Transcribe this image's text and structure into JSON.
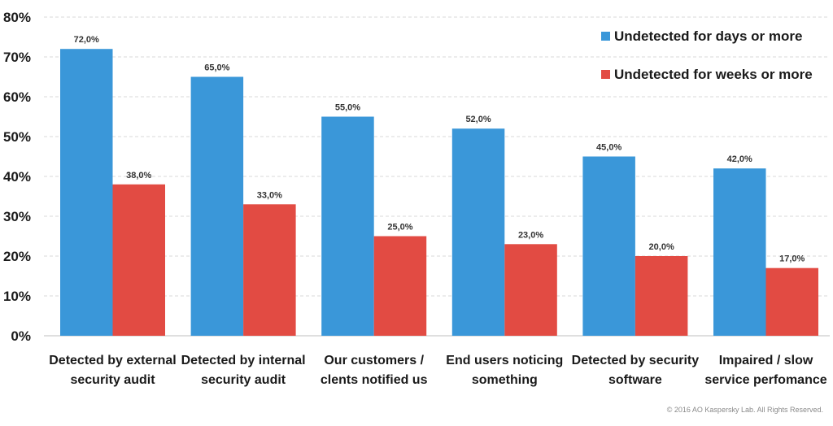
{
  "chart_data": {
    "type": "bar",
    "categories": [
      [
        "Detected by external",
        "security audit"
      ],
      [
        "Detected by internal",
        "security audit"
      ],
      [
        "Our customers /",
        "clents notified us"
      ],
      [
        "End users noticing",
        "something"
      ],
      [
        "Detected by security",
        "software"
      ],
      [
        "Impaired / slow",
        "service perfomance"
      ]
    ],
    "series": [
      {
        "name": "Undetected for days or more",
        "color": "#3a97d9",
        "values": [
          72,
          65,
          55,
          52,
          45,
          42
        ],
        "labels": [
          "72,0%",
          "65,0%",
          "55,0%",
          "52,0%",
          "45,0%",
          "42,0%"
        ]
      },
      {
        "name": "Undetected for weeks or more",
        "color": "#e24b43",
        "values": [
          38,
          33,
          25,
          23,
          20,
          17
        ],
        "labels": [
          "38,0%",
          "33,0%",
          "25,0%",
          "23,0%",
          "20,0%",
          "17,0%"
        ]
      }
    ],
    "yticks": [
      0,
      10,
      20,
      30,
      40,
      50,
      60,
      70,
      80
    ],
    "ytick_labels": [
      "0%",
      "10%",
      "20%",
      "30%",
      "40%",
      "50%",
      "60%",
      "70%",
      "80%"
    ],
    "ylim": [
      0,
      80
    ],
    "grid": true,
    "legend_position": "top-right"
  },
  "footer": {
    "copyright": "© 2016 AO Kaspersky Lab. All Rights Reserved."
  }
}
